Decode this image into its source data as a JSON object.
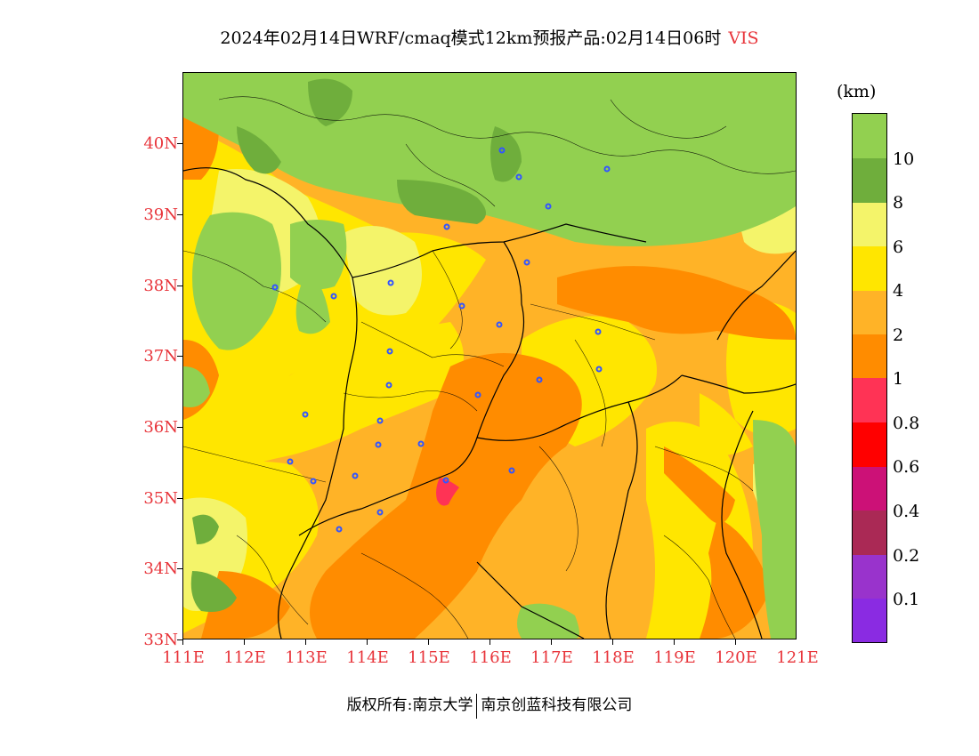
{
  "title": {
    "text": "2024年02月14日WRF/cmaq模式12km预报产品:02月14日06时",
    "variable": "VIS"
  },
  "map": {
    "lat_labels": [
      "40N",
      "39N",
      "38N",
      "37N",
      "36N",
      "35N",
      "34N",
      "33N"
    ],
    "lon_labels": [
      "111E",
      "112E",
      "113E",
      "114E",
      "115E",
      "116E",
      "117E",
      "118E",
      "119E",
      "120E",
      "121E"
    ],
    "colors": {
      "gt10": "#92d050",
      "8_10": "#6fae3c",
      "6_8": "#f4f46a",
      "4_6": "#ffe600",
      "2_4": "#ffb327",
      "1_2": "#ff8c00",
      "0.8_1": "#ff3355"
    },
    "station_marker_color": "#3355ff"
  },
  "legend": {
    "unit": "(km)",
    "labels": [
      "10",
      "8",
      "6",
      "4",
      "2",
      "1",
      "0.8",
      "0.6",
      "0.4",
      "0.2",
      "0.1"
    ],
    "colors": [
      "#92d050",
      "#6fae3c",
      "#f4f46a",
      "#ffe600",
      "#ffb327",
      "#ff8c00",
      "#ff3355",
      "#ff0000",
      "#cc1177",
      "#aa2955",
      "#9933cc",
      "#8a2be2"
    ]
  },
  "footer": {
    "copyright": "版权所有:南京大学",
    "company": "南京创蓝科技有限公司"
  }
}
